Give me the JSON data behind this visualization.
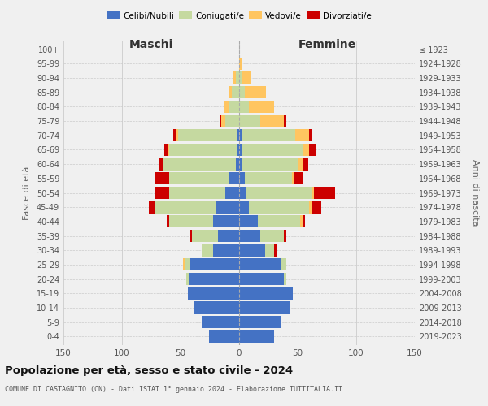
{
  "age_groups": [
    "0-4",
    "5-9",
    "10-14",
    "15-19",
    "20-24",
    "25-29",
    "30-34",
    "35-39",
    "40-44",
    "45-49",
    "50-54",
    "55-59",
    "60-64",
    "65-69",
    "70-74",
    "75-79",
    "80-84",
    "85-89",
    "90-94",
    "95-99",
    "100+"
  ],
  "birth_years": [
    "2019-2023",
    "2014-2018",
    "2009-2013",
    "2004-2008",
    "1999-2003",
    "1994-1998",
    "1989-1993",
    "1984-1988",
    "1979-1983",
    "1974-1978",
    "1969-1973",
    "1964-1968",
    "1959-1963",
    "1954-1958",
    "1949-1953",
    "1944-1948",
    "1939-1943",
    "1934-1938",
    "1929-1933",
    "1924-1928",
    "≤ 1923"
  ],
  "maschi": {
    "celibi": [
      26,
      32,
      38,
      44,
      43,
      42,
      22,
      18,
      22,
      20,
      12,
      8,
      3,
      2,
      2,
      0,
      0,
      0,
      0,
      0,
      0
    ],
    "coniugati": [
      0,
      0,
      0,
      0,
      2,
      4,
      10,
      22,
      38,
      52,
      48,
      52,
      62,
      58,
      50,
      12,
      8,
      6,
      3,
      0,
      0
    ],
    "vedovi": [
      0,
      0,
      0,
      0,
      0,
      2,
      0,
      0,
      0,
      0,
      0,
      0,
      0,
      1,
      2,
      3,
      5,
      3,
      2,
      0,
      0
    ],
    "divorziati": [
      0,
      0,
      0,
      0,
      0,
      0,
      0,
      2,
      2,
      5,
      12,
      12,
      3,
      3,
      2,
      2,
      0,
      0,
      0,
      0,
      0
    ]
  },
  "femmine": {
    "nubili": [
      30,
      36,
      44,
      46,
      38,
      36,
      22,
      18,
      16,
      8,
      6,
      5,
      3,
      2,
      2,
      0,
      0,
      0,
      0,
      0,
      0
    ],
    "coniugate": [
      0,
      0,
      0,
      0,
      2,
      4,
      8,
      20,
      36,
      52,
      56,
      40,
      48,
      52,
      46,
      18,
      8,
      5,
      2,
      0,
      0
    ],
    "vedove": [
      0,
      0,
      0,
      0,
      0,
      0,
      0,
      0,
      2,
      2,
      2,
      2,
      3,
      6,
      12,
      20,
      22,
      18,
      8,
      2,
      0
    ],
    "divorziate": [
      0,
      0,
      0,
      0,
      0,
      0,
      2,
      2,
      2,
      8,
      18,
      8,
      5,
      5,
      2,
      2,
      0,
      0,
      0,
      0,
      0
    ]
  },
  "colors": {
    "celibi": "#4472c4",
    "coniugati": "#c5d9a0",
    "vedovi": "#ffc560",
    "divorziati": "#cc0000"
  },
  "title": "Popolazione per età, sesso e stato civile - 2024",
  "subtitle": "COMUNE DI CASTAGNITO (CN) - Dati ISTAT 1° gennaio 2024 - Elaborazione TUTTITALIA.IT",
  "xlim": 150,
  "bg_color": "#f0f0f0",
  "grid_color": "#cccccc"
}
